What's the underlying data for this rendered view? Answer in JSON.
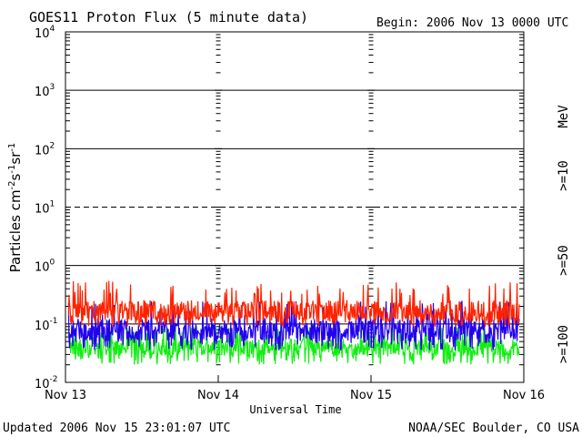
{
  "header": {
    "title": "GOES11 Proton Flux (5 minute data)",
    "begin": "Begin: 2006 Nov 13 0000 UTC"
  },
  "footer": {
    "updated": "Updated 2006 Nov 15 23:01:07 UTC",
    "credit": "NOAA/SEC Boulder, CO USA"
  },
  "legend": {
    "unit": "MeV",
    "items": [
      {
        "label": ">=10",
        "color": "#ff2200"
      },
      {
        "label": ">=50",
        "color": "#2200ee"
      },
      {
        "label": ">=100",
        "color": "#11ee11"
      }
    ]
  },
  "chart_data": {
    "type": "line",
    "title": "GOES11 Proton Flux (5 minute data)",
    "xlabel": "Universal Time",
    "ylabel": "Particles cm-2s-1sr-1",
    "yscale": "log",
    "ylim": [
      0.01,
      10000
    ],
    "xlim_days": [
      0,
      3
    ],
    "x_ticks": [
      "Nov 13",
      "Nov 14",
      "Nov 15",
      "Nov 16"
    ],
    "y_ticks": [
      {
        "base": "10",
        "exp": "4"
      },
      {
        "base": "10",
        "exp": "3"
      },
      {
        "base": "10",
        "exp": "2"
      },
      {
        "base": "10",
        "exp": "1"
      },
      {
        "base": "10",
        "exp": "0"
      },
      {
        "base": "10",
        "exp": "-1"
      },
      {
        "base": "10",
        "exp": "-2"
      }
    ],
    "threshold_lines": [
      1000,
      100,
      10,
      1,
      0.1
    ],
    "series": [
      {
        "name": ">=10 MeV",
        "color": "#ff2200",
        "typical_flux": 0.17,
        "min_flux": 0.09,
        "max_flux": 0.55
      },
      {
        "name": ">=50 MeV",
        "color": "#2200ee",
        "typical_flux": 0.08,
        "min_flux": 0.035,
        "max_flux": 0.25
      },
      {
        "name": ">=100 MeV",
        "color": "#11ee11",
        "typical_flux": 0.04,
        "min_flux": 0.02,
        "max_flux": 0.09
      }
    ]
  }
}
